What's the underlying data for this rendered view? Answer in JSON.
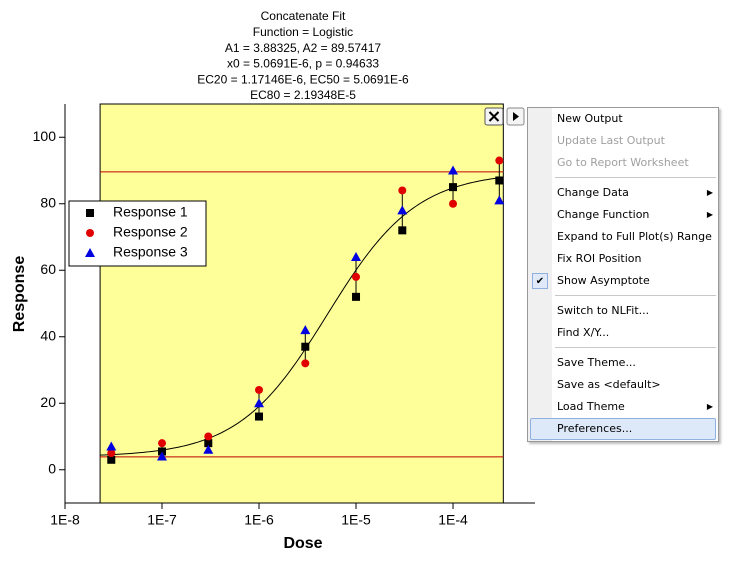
{
  "chart_data": {
    "type": "scatter",
    "title_lines": [
      "Concatenate Fit",
      "Function = Logistic",
      "A1 = 3.88325, A2 = 89.57417",
      "x0 = 5.0691E-6, p = 0.94633",
      "EC20 = 1.17146E-6, EC50 = 5.0691E-6",
      "EC80 = 2.19348E-5"
    ],
    "x_label": "Dose",
    "y_label": "Response",
    "xscale": "log",
    "xlim": [
      1e-08,
      0.0007
    ],
    "xticks": [
      {
        "value": 1e-08,
        "label": "1E-8"
      },
      {
        "value": 1e-07,
        "label": "1E-7"
      },
      {
        "value": 1e-06,
        "label": "1E-6"
      },
      {
        "value": 1e-05,
        "label": "1E-5"
      },
      {
        "value": 0.0001,
        "label": "1E-4"
      }
    ],
    "ylim": [
      -10,
      110
    ],
    "yticks": [
      0,
      20,
      40,
      60,
      80,
      100
    ],
    "x": [
      3e-08,
      1e-07,
      3e-07,
      1e-06,
      3e-06,
      1e-05,
      3e-05,
      0.0001,
      0.0003
    ],
    "series": [
      {
        "name": "Response 1",
        "color": "#000000",
        "marker": "square",
        "values": [
          3,
          5.5,
          8,
          16,
          37,
          52,
          72,
          85,
          87
        ]
      },
      {
        "name": "Response 2",
        "color": "#e00000",
        "marker": "circle",
        "values": [
          5,
          8,
          10,
          24,
          32,
          58,
          84,
          80,
          93
        ]
      },
      {
        "name": "Response 3",
        "color": "#0000e0",
        "marker": "triangle",
        "values": [
          7,
          4,
          6,
          20,
          42,
          64,
          78,
          90,
          81
        ]
      }
    ],
    "fit": {
      "A1": 3.88325,
      "A2": 89.57417,
      "x0": 5.0691e-06,
      "p": 0.94633,
      "color": "#000000"
    },
    "asymptote_color": "#c00000",
    "roi": {
      "xrange": [
        2.3e-08,
        0.00033
      ],
      "color": "#ffff99"
    },
    "legend": "upper left"
  },
  "menu": {
    "groups": [
      {
        "items": [
          {
            "label": "New Output"
          },
          {
            "label": "Update Last Output",
            "disabled": true
          },
          {
            "label": "Go to Report Worksheet",
            "disabled": true
          }
        ]
      },
      {
        "items": [
          {
            "label": "Change Data",
            "submenu": true
          },
          {
            "label": "Change Function",
            "submenu": true
          },
          {
            "label": "Expand to Full Plot(s) Range"
          },
          {
            "label": "Fix ROI Position"
          },
          {
            "label": "Show Asymptote",
            "checked": true
          }
        ]
      },
      {
        "items": [
          {
            "label": "Switch to NLFit..."
          },
          {
            "label": "Find X/Y..."
          }
        ]
      },
      {
        "items": [
          {
            "label": "Save Theme..."
          },
          {
            "label": "Save as <default>"
          },
          {
            "label": "Load Theme",
            "submenu": true
          },
          {
            "label": "Preferences...",
            "highlighted": true
          }
        ]
      }
    ]
  }
}
